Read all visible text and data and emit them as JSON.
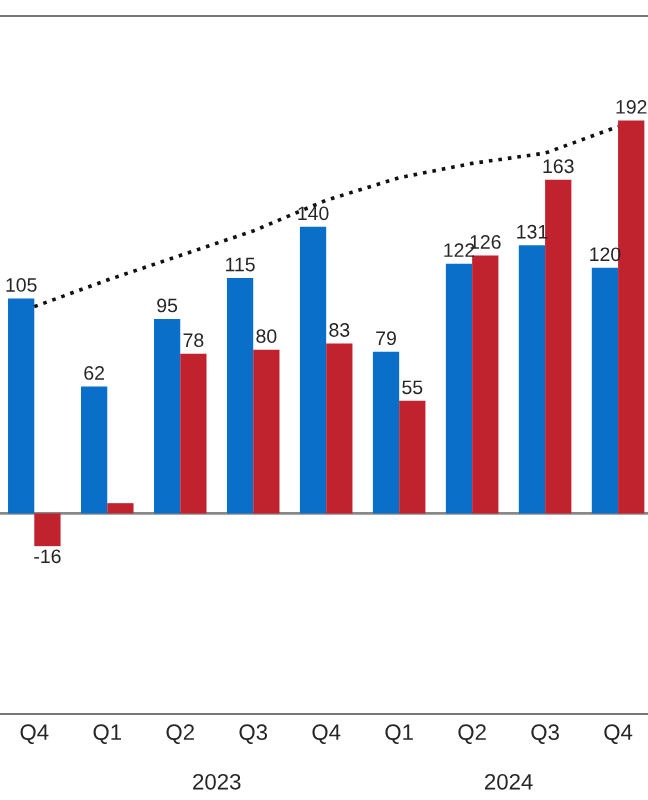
{
  "chart_data": {
    "type": "bar",
    "categories": [
      "Q4",
      "Q1",
      "Q2",
      "Q3",
      "Q4",
      "Q1",
      "Q2",
      "Q3",
      "Q4"
    ],
    "series": [
      {
        "color": "#0a6fc8",
        "values": [
          105,
          62,
          95,
          115,
          140,
          79,
          122,
          131,
          120
        ],
        "value_labels": [
          "105",
          "62",
          "95",
          "115",
          "140",
          "79",
          "122",
          "131",
          "120"
        ]
      },
      {
        "color": "#c0222e",
        "values": [
          -16,
          5,
          78,
          80,
          83,
          55,
          126,
          163,
          192
        ],
        "value_labels": [
          "-16",
          null,
          "78",
          "80",
          "83",
          "55",
          "126",
          "163",
          "192"
        ]
      },
      {
        "type": "line",
        "color": "#111111",
        "line_style": "dotted",
        "values": [
          101,
          114,
          126,
          138,
          153,
          164,
          171,
          176,
          189
        ]
      }
    ],
    "ylim": [
      -98,
      243
    ],
    "tick_labels": "x",
    "grid": false,
    "legend": false,
    "annotations": [
      "2023",
      "2024"
    ]
  }
}
